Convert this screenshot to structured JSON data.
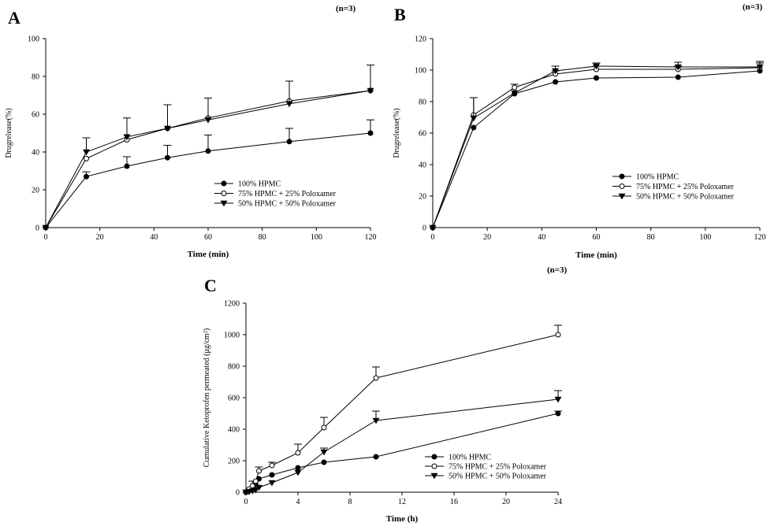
{
  "chart_data": [
    {
      "id": "A",
      "type": "line",
      "panel_label": "A",
      "n_label": "(n=3)",
      "xlabel": "Time (min)",
      "ylabel": "Drugrelease(%)",
      "xlim": [
        0,
        120
      ],
      "ylim": [
        0,
        100
      ],
      "xticks": [
        0,
        20,
        40,
        60,
        80,
        100,
        120
      ],
      "yticks": [
        0,
        20,
        40,
        60,
        80,
        100
      ],
      "grid": false,
      "legend_position": "lower-right",
      "x": [
        0,
        15,
        30,
        45,
        60,
        90,
        120
      ],
      "series": [
        {
          "name": "100% HPMC",
          "marker": "filled-circle",
          "values": [
            0,
            27,
            32.5,
            37,
            40.5,
            45.5,
            50
          ],
          "errors": [
            0,
            2.5,
            5,
            6.5,
            8.5,
            7,
            7
          ]
        },
        {
          "name": "75% HPMC + 25% Poloxamer",
          "marker": "open-circle",
          "values": [
            0,
            36.5,
            46.5,
            52.5,
            58,
            67,
            72.5
          ],
          "errors": [
            0,
            0,
            0,
            0,
            0,
            0,
            0
          ]
        },
        {
          "name": "50% HPMC + 50% Poloxamer",
          "marker": "filled-triangle-down",
          "values": [
            0,
            40,
            48,
            52.5,
            57,
            65.5,
            72.5
          ],
          "errors": [
            0,
            7.5,
            10,
            12.5,
            11.5,
            12,
            13.5
          ]
        }
      ]
    },
    {
      "id": "B",
      "type": "line",
      "panel_label": "B",
      "n_label": "(n=3)",
      "xlabel": "Time (min)",
      "ylabel": "Drugrelease(%)",
      "xlim": [
        0,
        120
      ],
      "ylim": [
        0,
        120
      ],
      "xticks": [
        0,
        20,
        40,
        60,
        80,
        100,
        120
      ],
      "yticks": [
        0,
        20,
        40,
        60,
        80,
        100,
        120
      ],
      "grid": false,
      "legend_position": "lower-right",
      "x": [
        0,
        15,
        30,
        45,
        60,
        90,
        120
      ],
      "series": [
        {
          "name": "100% HPMC",
          "marker": "filled-circle",
          "values": [
            0,
            63.5,
            85,
            92.5,
            95,
            95.5,
            99.5
          ],
          "errors": [
            0,
            0,
            0,
            0,
            0,
            0,
            0
          ]
        },
        {
          "name": "75% HPMC + 25% Poloxamer",
          "marker": "open-circle",
          "values": [
            0,
            71.5,
            89,
            97.5,
            100.5,
            100.5,
            101.5
          ],
          "errors": [
            0,
            11,
            2,
            2,
            2,
            2,
            3
          ]
        },
        {
          "name": "50% HPMC + 50% Poloxamer",
          "marker": "filled-triangle-down",
          "values": [
            0,
            69.5,
            85.5,
            99.5,
            102.5,
            102,
            102
          ],
          "errors": [
            0,
            13,
            0,
            3,
            2,
            3,
            3.5
          ]
        }
      ]
    },
    {
      "id": "C",
      "type": "line",
      "panel_label": "C",
      "n_label": "(n=3)",
      "xlabel": "Time (h)",
      "ylabel": "Cumulative Ketoprofen permeated (μg/cm²)",
      "xlim": [
        0,
        24
      ],
      "ylim": [
        0,
        1200
      ],
      "xticks": [
        0,
        4,
        8,
        12,
        16,
        20,
        24
      ],
      "yticks": [
        0,
        200,
        400,
        600,
        800,
        1000,
        1200
      ],
      "grid": false,
      "legend_position": "lower-right",
      "x": [
        0,
        0.25,
        0.5,
        0.75,
        1,
        2,
        4,
        6,
        10,
        24
      ],
      "series": [
        {
          "name": "100% HPMC",
          "marker": "filled-circle",
          "values": [
            0,
            10,
            25,
            50,
            85,
            110,
            155,
            190,
            225,
            500
          ],
          "errors": [
            0,
            0,
            0,
            0,
            0,
            0,
            0,
            0,
            0,
            15
          ]
        },
        {
          "name": "75% HPMC + 25% Poloxamer",
          "marker": "open-circle",
          "values": [
            0,
            20,
            40,
            70,
            135,
            170,
            250,
            410,
            725,
            1000
          ],
          "errors": [
            0,
            0,
            30,
            0,
            25,
            20,
            55,
            65,
            70,
            60
          ]
        },
        {
          "name": "50% HPMC + 50% Poloxamer",
          "marker": "filled-triangle-down",
          "values": [
            0,
            3,
            8,
            15,
            30,
            60,
            125,
            255,
            455,
            590
          ],
          "errors": [
            0,
            0,
            0,
            0,
            0,
            0,
            0,
            25,
            60,
            55
          ]
        }
      ]
    }
  ]
}
